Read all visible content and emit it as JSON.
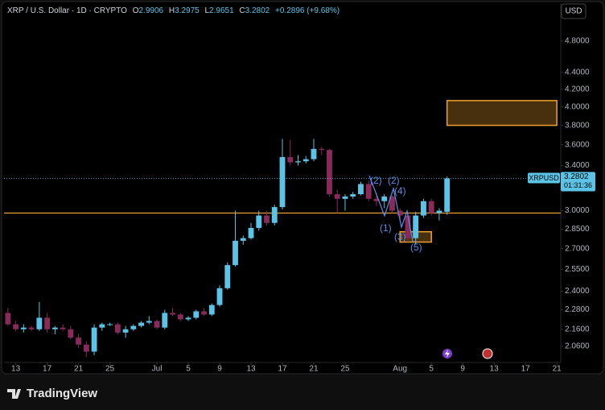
{
  "chart_data": {
    "type": "candlestick",
    "header": {
      "symbol": "XRP / U.S. Dollar · 1D · CRYPTO",
      "ohlc": [
        {
          "label": "O",
          "value": 2.9906
        },
        {
          "label": "H",
          "value": 3.2975
        },
        {
          "label": "L",
          "value": 2.9651
        },
        {
          "label": "C",
          "value": 3.2802
        }
      ],
      "change": "+0.2896 (+9.68%)"
    },
    "currency_button": "USD",
    "ticker_label": "XRPUSD",
    "countdown": "01:31:36",
    "brand": "TradingView",
    "log_scale": true,
    "up_color": "#5bc4e6",
    "down_color": "#8a2a5a",
    "x": [
      "Jun 12",
      "Jun 13",
      "Jun 14",
      "Jun 15",
      "Jun 16",
      "Jun 17",
      "Jun 18",
      "Jun 19",
      "Jun 20",
      "Jun 21",
      "Jun 22",
      "Jun 23",
      "Jun 24",
      "Jun 25",
      "Jun 26",
      "Jun 27",
      "Jun 28",
      "Jun 29",
      "Jun 30",
      "Jul 1",
      "Jul 2",
      "Jul 3",
      "Jul 4",
      "Jul 5",
      "Jul 6",
      "Jul 7",
      "Jul 8",
      "Jul 9",
      "Jul 10",
      "Jul 11",
      "Jul 12",
      "Jul 13",
      "Jul 14",
      "Jul 15",
      "Jul 16",
      "Jul 17",
      "Jul 18",
      "Jul 19",
      "Jul 20",
      "Jul 21",
      "Jul 22",
      "Jul 23",
      "Jul 24",
      "Jul 25",
      "Jul 26",
      "Jul 27",
      "Jul 28",
      "Jul 29",
      "Jul 30",
      "Jul 31",
      "Aug 1",
      "Aug 2",
      "Aug 3",
      "Aug 4",
      "Aug 5",
      "Aug 6",
      "Aug 7"
    ],
    "open": [
      2.26,
      2.19,
      2.16,
      2.17,
      2.16,
      2.23,
      2.16,
      2.17,
      2.16,
      2.11,
      2.07,
      2.03,
      2.17,
      2.19,
      2.19,
      2.14,
      2.16,
      2.18,
      2.2,
      2.21,
      2.17,
      2.26,
      2.25,
      2.22,
      2.23,
      2.27,
      2.25,
      2.31,
      2.42,
      2.58,
      2.76,
      2.78,
      2.86,
      2.96,
      2.9,
      3.03,
      3.48,
      3.43,
      3.44,
      3.46,
      3.56,
      3.55,
      3.14,
      3.1,
      3.12,
      3.14,
      3.23,
      3.1,
      3.08,
      3.12,
      3.0,
      2.96,
      2.78,
      2.96,
      3.08,
      2.98,
      2.9906
    ],
    "high": [
      2.29,
      2.21,
      2.19,
      2.18,
      2.33,
      2.26,
      2.18,
      2.19,
      2.18,
      2.13,
      2.09,
      2.19,
      2.2,
      2.2,
      2.2,
      2.18,
      2.19,
      2.21,
      2.24,
      2.22,
      2.28,
      2.29,
      2.26,
      2.24,
      2.28,
      2.29,
      2.32,
      2.44,
      2.6,
      3.0,
      2.8,
      2.9,
      3.0,
      3.0,
      3.05,
      3.66,
      3.65,
      3.5,
      3.49,
      3.66,
      3.58,
      3.56,
      3.18,
      3.14,
      3.16,
      3.25,
      3.26,
      3.15,
      3.14,
      3.13,
      3.02,
      2.98,
      2.99,
      3.1,
      3.1,
      3.02,
      3.2975
    ],
    "low": [
      2.18,
      2.15,
      2.14,
      2.15,
      2.15,
      2.14,
      2.13,
      2.15,
      2.1,
      2.05,
      2.0,
      2.01,
      2.15,
      2.18,
      2.13,
      2.11,
      2.15,
      2.17,
      2.19,
      2.16,
      2.16,
      2.24,
      2.21,
      2.21,
      2.22,
      2.24,
      2.24,
      2.3,
      2.41,
      2.57,
      2.73,
      2.77,
      2.84,
      2.88,
      2.88,
      3.01,
      3.4,
      3.4,
      3.42,
      3.44,
      3.5,
      3.12,
      2.98,
      3.0,
      3.1,
      3.13,
      3.08,
      3.04,
      3.02,
      2.98,
      2.93,
      2.75,
      2.73,
      2.94,
      2.96,
      2.92,
      2.9651
    ],
    "close": [
      2.19,
      2.16,
      2.17,
      2.16,
      2.23,
      2.16,
      2.17,
      2.16,
      2.11,
      2.07,
      2.03,
      2.17,
      2.19,
      2.19,
      2.14,
      2.16,
      2.18,
      2.2,
      2.21,
      2.17,
      2.26,
      2.25,
      2.22,
      2.23,
      2.27,
      2.25,
      2.31,
      2.42,
      2.58,
      2.76,
      2.78,
      2.86,
      2.96,
      2.9,
      3.03,
      3.48,
      3.43,
      3.44,
      3.46,
      3.56,
      3.55,
      3.14,
      3.1,
      3.12,
      3.14,
      3.23,
      3.1,
      3.08,
      3.12,
      3.0,
      2.96,
      2.78,
      2.96,
      3.08,
      2.98,
      3.0,
      3.2802
    ],
    "xlim": [
      "Jun 12",
      "Aug 21"
    ],
    "xticks": [
      {
        "value": "Jun 13",
        "label": "13"
      },
      {
        "value": "Jun 17",
        "label": "17"
      },
      {
        "value": "Jun 21",
        "label": "21"
      },
      {
        "value": "Jun 25",
        "label": "25"
      },
      {
        "value": "Jul 1",
        "label": "Jul"
      },
      {
        "value": "Jul 5",
        "label": "5"
      },
      {
        "value": "Jul 9",
        "label": "9"
      },
      {
        "value": "Jul 13",
        "label": "13"
      },
      {
        "value": "Jul 17",
        "label": "17"
      },
      {
        "value": "Jul 21",
        "label": "21"
      },
      {
        "value": "Jul 25",
        "label": "25"
      },
      {
        "value": "Aug 1",
        "label": "Aug"
      },
      {
        "value": "Aug 5",
        "label": "5"
      },
      {
        "value": "Aug 9",
        "label": "9"
      },
      {
        "value": "Aug 13",
        "label": "13"
      },
      {
        "value": "Aug 17",
        "label": "17"
      },
      {
        "value": "Aug 21",
        "label": "21"
      }
    ],
    "ylim": [
      1.97,
      5.33
    ],
    "yticks": [
      {
        "value": 2.06,
        "label": "2.0600"
      },
      {
        "value": 2.16,
        "label": "2.1600"
      },
      {
        "value": 2.28,
        "label": "2.2800"
      },
      {
        "value": 2.4,
        "label": "2.4000"
      },
      {
        "value": 2.55,
        "label": "2.5500"
      },
      {
        "value": 2.7,
        "label": "2.7000"
      },
      {
        "value": 2.85,
        "label": "2.8500"
      },
      {
        "value": 3,
        "label": "3.0000"
      },
      {
        "value": 3.2,
        "label": "3.2000"
      },
      {
        "value": 3.4,
        "label": "3.4000"
      },
      {
        "value": 3.6,
        "label": "3.6000"
      },
      {
        "value": 3.8,
        "label": "3.8000"
      },
      {
        "value": 4,
        "label": "4.0000"
      },
      {
        "value": 4.2,
        "label": "4.2000"
      },
      {
        "value": 4.4,
        "label": "4.4000"
      },
      {
        "value": 4.8,
        "label": "4.8000"
      }
    ],
    "level_line": {
      "value": 2.98,
      "color": "#f0a030"
    },
    "zones": [
      {
        "x": [
          "Aug 7",
          "Aug 21"
        ],
        "y": [
          3.8,
          4.07
        ],
        "color": "#f0a030"
      },
      {
        "x": [
          "Aug 1",
          "Aug 5"
        ],
        "y": [
          2.75,
          2.83
        ],
        "color": "#f0a030"
      }
    ],
    "wave_labels": [
      "(1)",
      "(2)",
      "(3)",
      "(4)",
      "(5)"
    ]
  }
}
